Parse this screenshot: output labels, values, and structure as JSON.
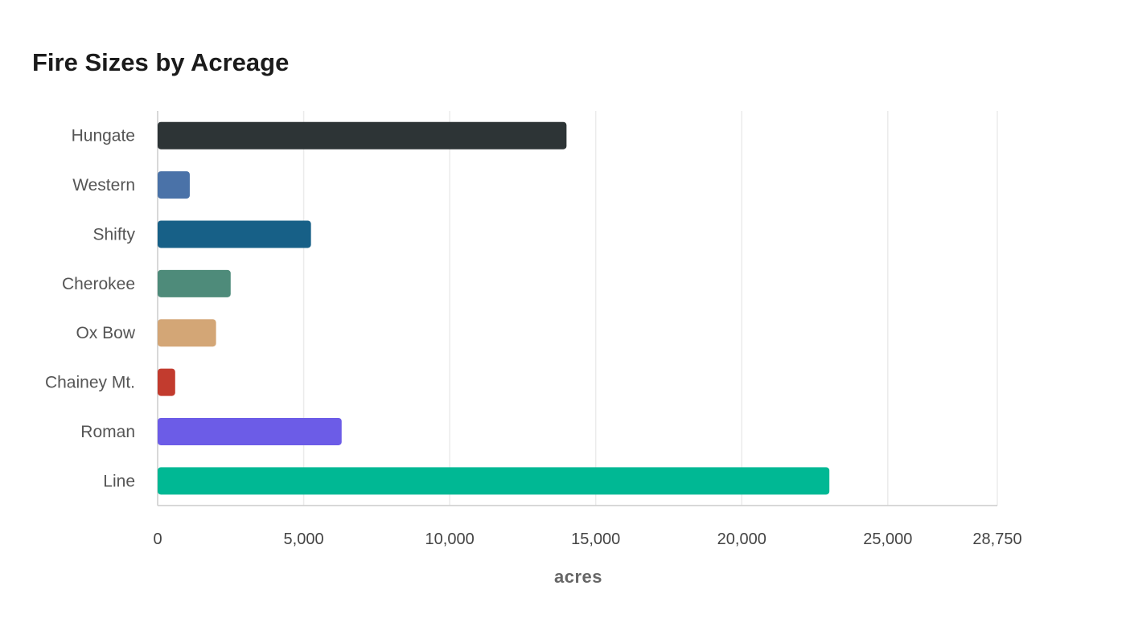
{
  "chart_data": {
    "type": "bar",
    "orientation": "horizontal",
    "title": "Fire Sizes by Acreage",
    "xlabel": "acres",
    "ylabel": "",
    "xlim": [
      0,
      28750
    ],
    "x_ticks": [
      0,
      5000,
      10000,
      15000,
      20000,
      25000,
      28750
    ],
    "x_tick_labels": [
      "0",
      "5,000",
      "10,000",
      "15,000",
      "20,000",
      "25,000",
      "28,750"
    ],
    "grid": true,
    "legend": "none",
    "categories": [
      "Hungate",
      "Western",
      "Shifty",
      "Cherokee",
      "Ox Bow",
      "Chainey Mt.",
      "Roman",
      "Line"
    ],
    "values": [
      14000,
      1100,
      5250,
      2500,
      2000,
      600,
      6300,
      23000
    ],
    "colors": [
      "#2d3436",
      "#4a72a8",
      "#176087",
      "#4e8b7a",
      "#d3a676",
      "#c23b2e",
      "#6c5ce7",
      "#00b894"
    ]
  }
}
